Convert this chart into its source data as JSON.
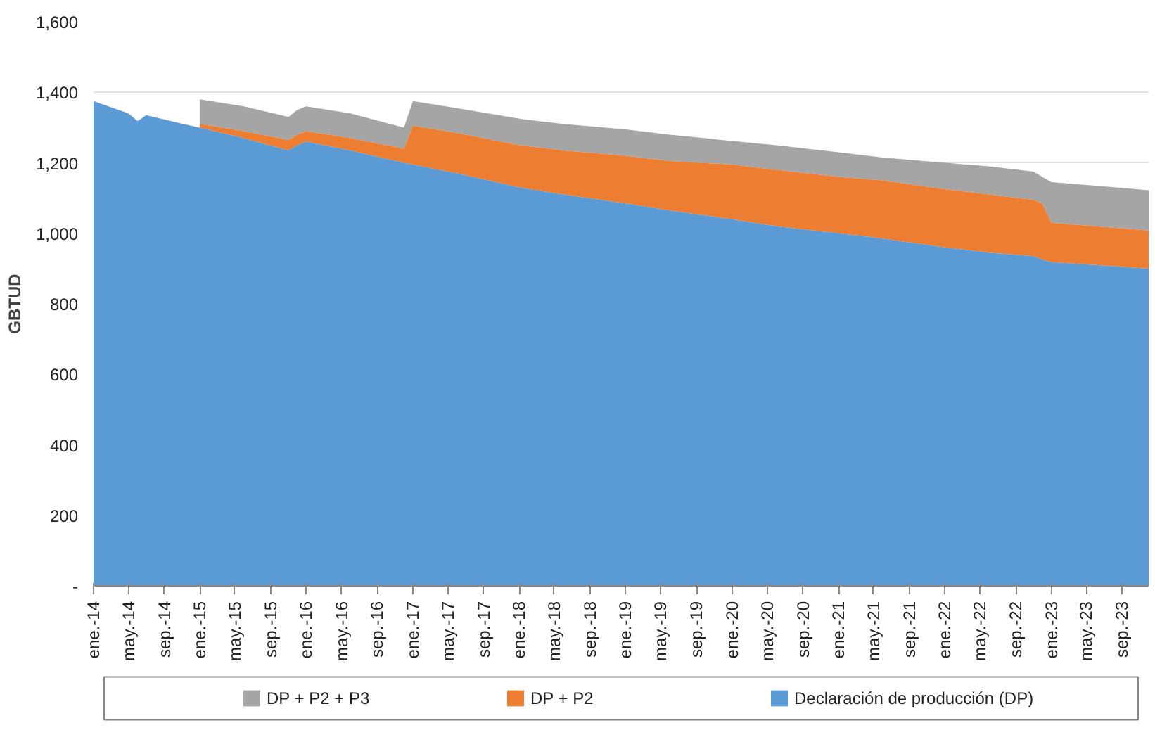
{
  "chart_data": {
    "type": "area",
    "ylabel": "GBTUD",
    "x": [
      "2014-01",
      "2014-05",
      "2014-06",
      "2014-07",
      "2014-12",
      "2015-01",
      "2015-06",
      "2015-11",
      "2015-12",
      "2016-01",
      "2016-06",
      "2016-12",
      "2017-01",
      "2017-06",
      "2018-01",
      "2018-06",
      "2019-01",
      "2019-06",
      "2020-01",
      "2020-06",
      "2021-01",
      "2021-06",
      "2022-01",
      "2022-06",
      "2022-11",
      "2022-12",
      "2023-01",
      "2023-06",
      "2023-12"
    ],
    "series": [
      {
        "name": "DP + P2 + P3",
        "color": "#a5a5a5",
        "values": [
          null,
          null,
          null,
          null,
          null,
          1380,
          1360,
          1330,
          1350,
          1360,
          1340,
          1300,
          1375,
          1355,
          1325,
          1310,
          1295,
          1280,
          1262,
          1250,
          1230,
          1215,
          1200,
          1190,
          1175,
          1160,
          1145,
          1135,
          1122
        ]
      },
      {
        "name": "DP + P2",
        "color": "#ed7d31",
        "values": [
          null,
          null,
          null,
          null,
          null,
          1310,
          1290,
          1265,
          1280,
          1290,
          1270,
          1240,
          1305,
          1285,
          1250,
          1235,
          1220,
          1205,
          1195,
          1180,
          1160,
          1150,
          1125,
          1110,
          1095,
          1085,
          1030,
          1020,
          1008
        ]
      },
      {
        "name": "Declaración de producción (DP)",
        "color": "#5b9bd5",
        "values": [
          1375,
          1340,
          1318,
          1335,
          1305,
          1300,
          1270,
          1235,
          1250,
          1260,
          1235,
          1200,
          1195,
          1170,
          1130,
          1110,
          1085,
          1065,
          1040,
          1020,
          1000,
          985,
          960,
          945,
          935,
          925,
          918,
          910,
          900
        ]
      }
    ],
    "xlim": [
      "2014-01",
      "2023-12"
    ],
    "xticks": [
      {
        "value": "2014-01",
        "label": "ene.-14"
      },
      {
        "value": "2014-05",
        "label": "may.-14"
      },
      {
        "value": "2014-09",
        "label": "sep.-14"
      },
      {
        "value": "2015-01",
        "label": "ene.-15"
      },
      {
        "value": "2015-05",
        "label": "may.-15"
      },
      {
        "value": "2015-09",
        "label": "sep.-15"
      },
      {
        "value": "2016-01",
        "label": "ene.-16"
      },
      {
        "value": "2016-05",
        "label": "may.-16"
      },
      {
        "value": "2016-09",
        "label": "sep.-16"
      },
      {
        "value": "2017-01",
        "label": "ene.-17"
      },
      {
        "value": "2017-05",
        "label": "may.-17"
      },
      {
        "value": "2017-09",
        "label": "sep.-17"
      },
      {
        "value": "2018-01",
        "label": "ene.-18"
      },
      {
        "value": "2018-05",
        "label": "may.-18"
      },
      {
        "value": "2018-09",
        "label": "sep.-18"
      },
      {
        "value": "2019-01",
        "label": "ene.-19"
      },
      {
        "value": "2019-05",
        "label": "may.-19"
      },
      {
        "value": "2019-09",
        "label": "sep.-19"
      },
      {
        "value": "2020-01",
        "label": "ene.-20"
      },
      {
        "value": "2020-05",
        "label": "may.-20"
      },
      {
        "value": "2020-09",
        "label": "sep.-20"
      },
      {
        "value": "2021-01",
        "label": "ene.-21"
      },
      {
        "value": "2021-05",
        "label": "may.-21"
      },
      {
        "value": "2021-09",
        "label": "sep.-21"
      },
      {
        "value": "2022-01",
        "label": "ene.-22"
      },
      {
        "value": "2022-05",
        "label": "may.-22"
      },
      {
        "value": "2022-09",
        "label": "sep.-22"
      },
      {
        "value": "2023-01",
        "label": "ene.-23"
      },
      {
        "value": "2023-05",
        "label": "may.-23"
      },
      {
        "value": "2023-09",
        "label": "sep.-23"
      }
    ],
    "ylim": [
      0,
      1600
    ],
    "yticks": [
      {
        "value": 0,
        "label": "-"
      },
      200,
      400,
      600,
      800,
      {
        "value": 1000,
        "label": "1,000"
      },
      {
        "value": 1200,
        "label": "1,200"
      },
      {
        "value": 1400,
        "label": "1,400"
      },
      {
        "value": 1600,
        "label": "1,600"
      }
    ],
    "grid": "y",
    "legend": "bottom"
  }
}
